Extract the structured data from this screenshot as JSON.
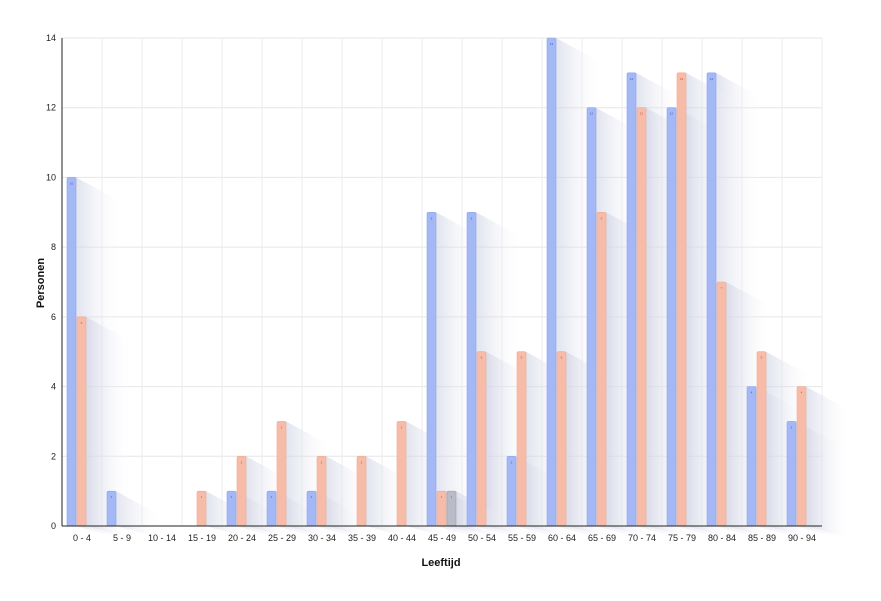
{
  "chart_data": {
    "type": "bar",
    "xlabel": "Leeftijd",
    "ylabel": "Personen",
    "ylim": [
      0,
      14
    ],
    "yticks": [
      0,
      2,
      4,
      6,
      8,
      10,
      12,
      14
    ],
    "grid": true,
    "categories": [
      "0 - 4",
      "5 - 9",
      "10 - 14",
      "15 - 19",
      "20 - 24",
      "25 - 29",
      "30 - 34",
      "35 - 39",
      "40 - 44",
      "45 - 49",
      "50 - 54",
      "55 - 59",
      "60 - 64",
      "65 - 69",
      "70 - 74",
      "75 - 79",
      "80 - 84",
      "85 - 89",
      "90 - 94"
    ],
    "series": [
      {
        "color": "#a4b8f5",
        "values": [
          10,
          1,
          0,
          0,
          1,
          1,
          1,
          0,
          0,
          9,
          9,
          2,
          14,
          12,
          13,
          12,
          13,
          4,
          3
        ]
      },
      {
        "color": "#f7bca7",
        "values": [
          6,
          0,
          0,
          1,
          2,
          3,
          2,
          2,
          3,
          1,
          5,
          5,
          5,
          9,
          12,
          13,
          7,
          5,
          4
        ]
      },
      {
        "color": "#b9bcc6",
        "values": [
          0,
          0,
          0,
          0,
          0,
          0,
          0,
          0,
          0,
          1,
          0,
          0,
          0,
          0,
          0,
          0,
          0,
          0,
          0
        ]
      }
    ]
  }
}
